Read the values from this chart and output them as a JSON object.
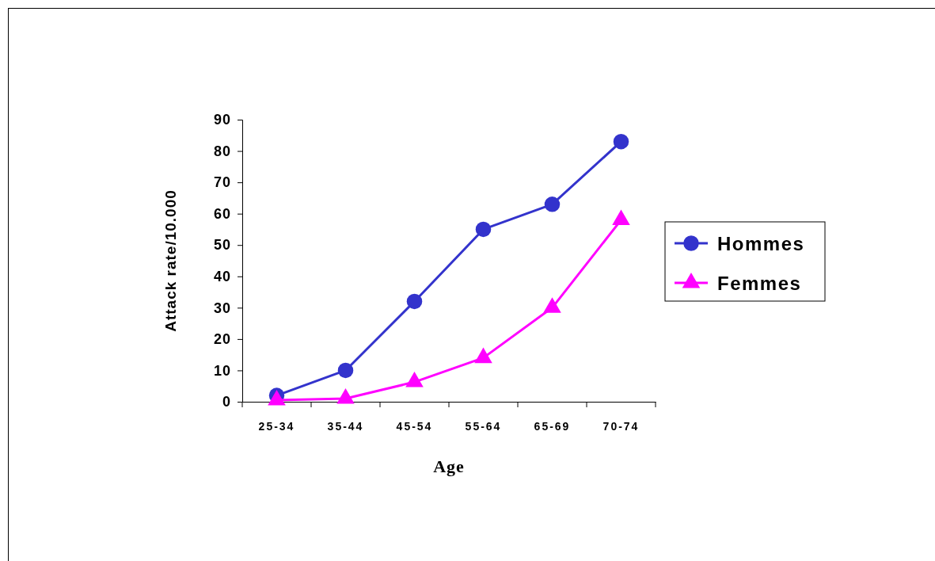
{
  "chart_data": {
    "type": "line",
    "xlabel": "Age",
    "ylabel": "Attack rate/10.000",
    "categories": [
      "25-34",
      "35-44",
      "45-54",
      "55-64",
      "65-69",
      "70-74"
    ],
    "series": [
      {
        "name": "Hommes",
        "color": "#3333cc",
        "marker": "circle",
        "values": [
          2,
          10,
          32,
          55,
          63,
          83
        ]
      },
      {
        "name": "Femmes",
        "color": "#ff00ff",
        "marker": "triangle",
        "values": [
          0.5,
          1,
          6.3,
          14,
          30,
          58
        ]
      }
    ],
    "ylim": [
      0,
      90
    ],
    "yticks": [
      0,
      10,
      20,
      30,
      40,
      50,
      60,
      70,
      80,
      90
    ],
    "grid": false,
    "legend": "right",
    "line_style": "solid"
  }
}
